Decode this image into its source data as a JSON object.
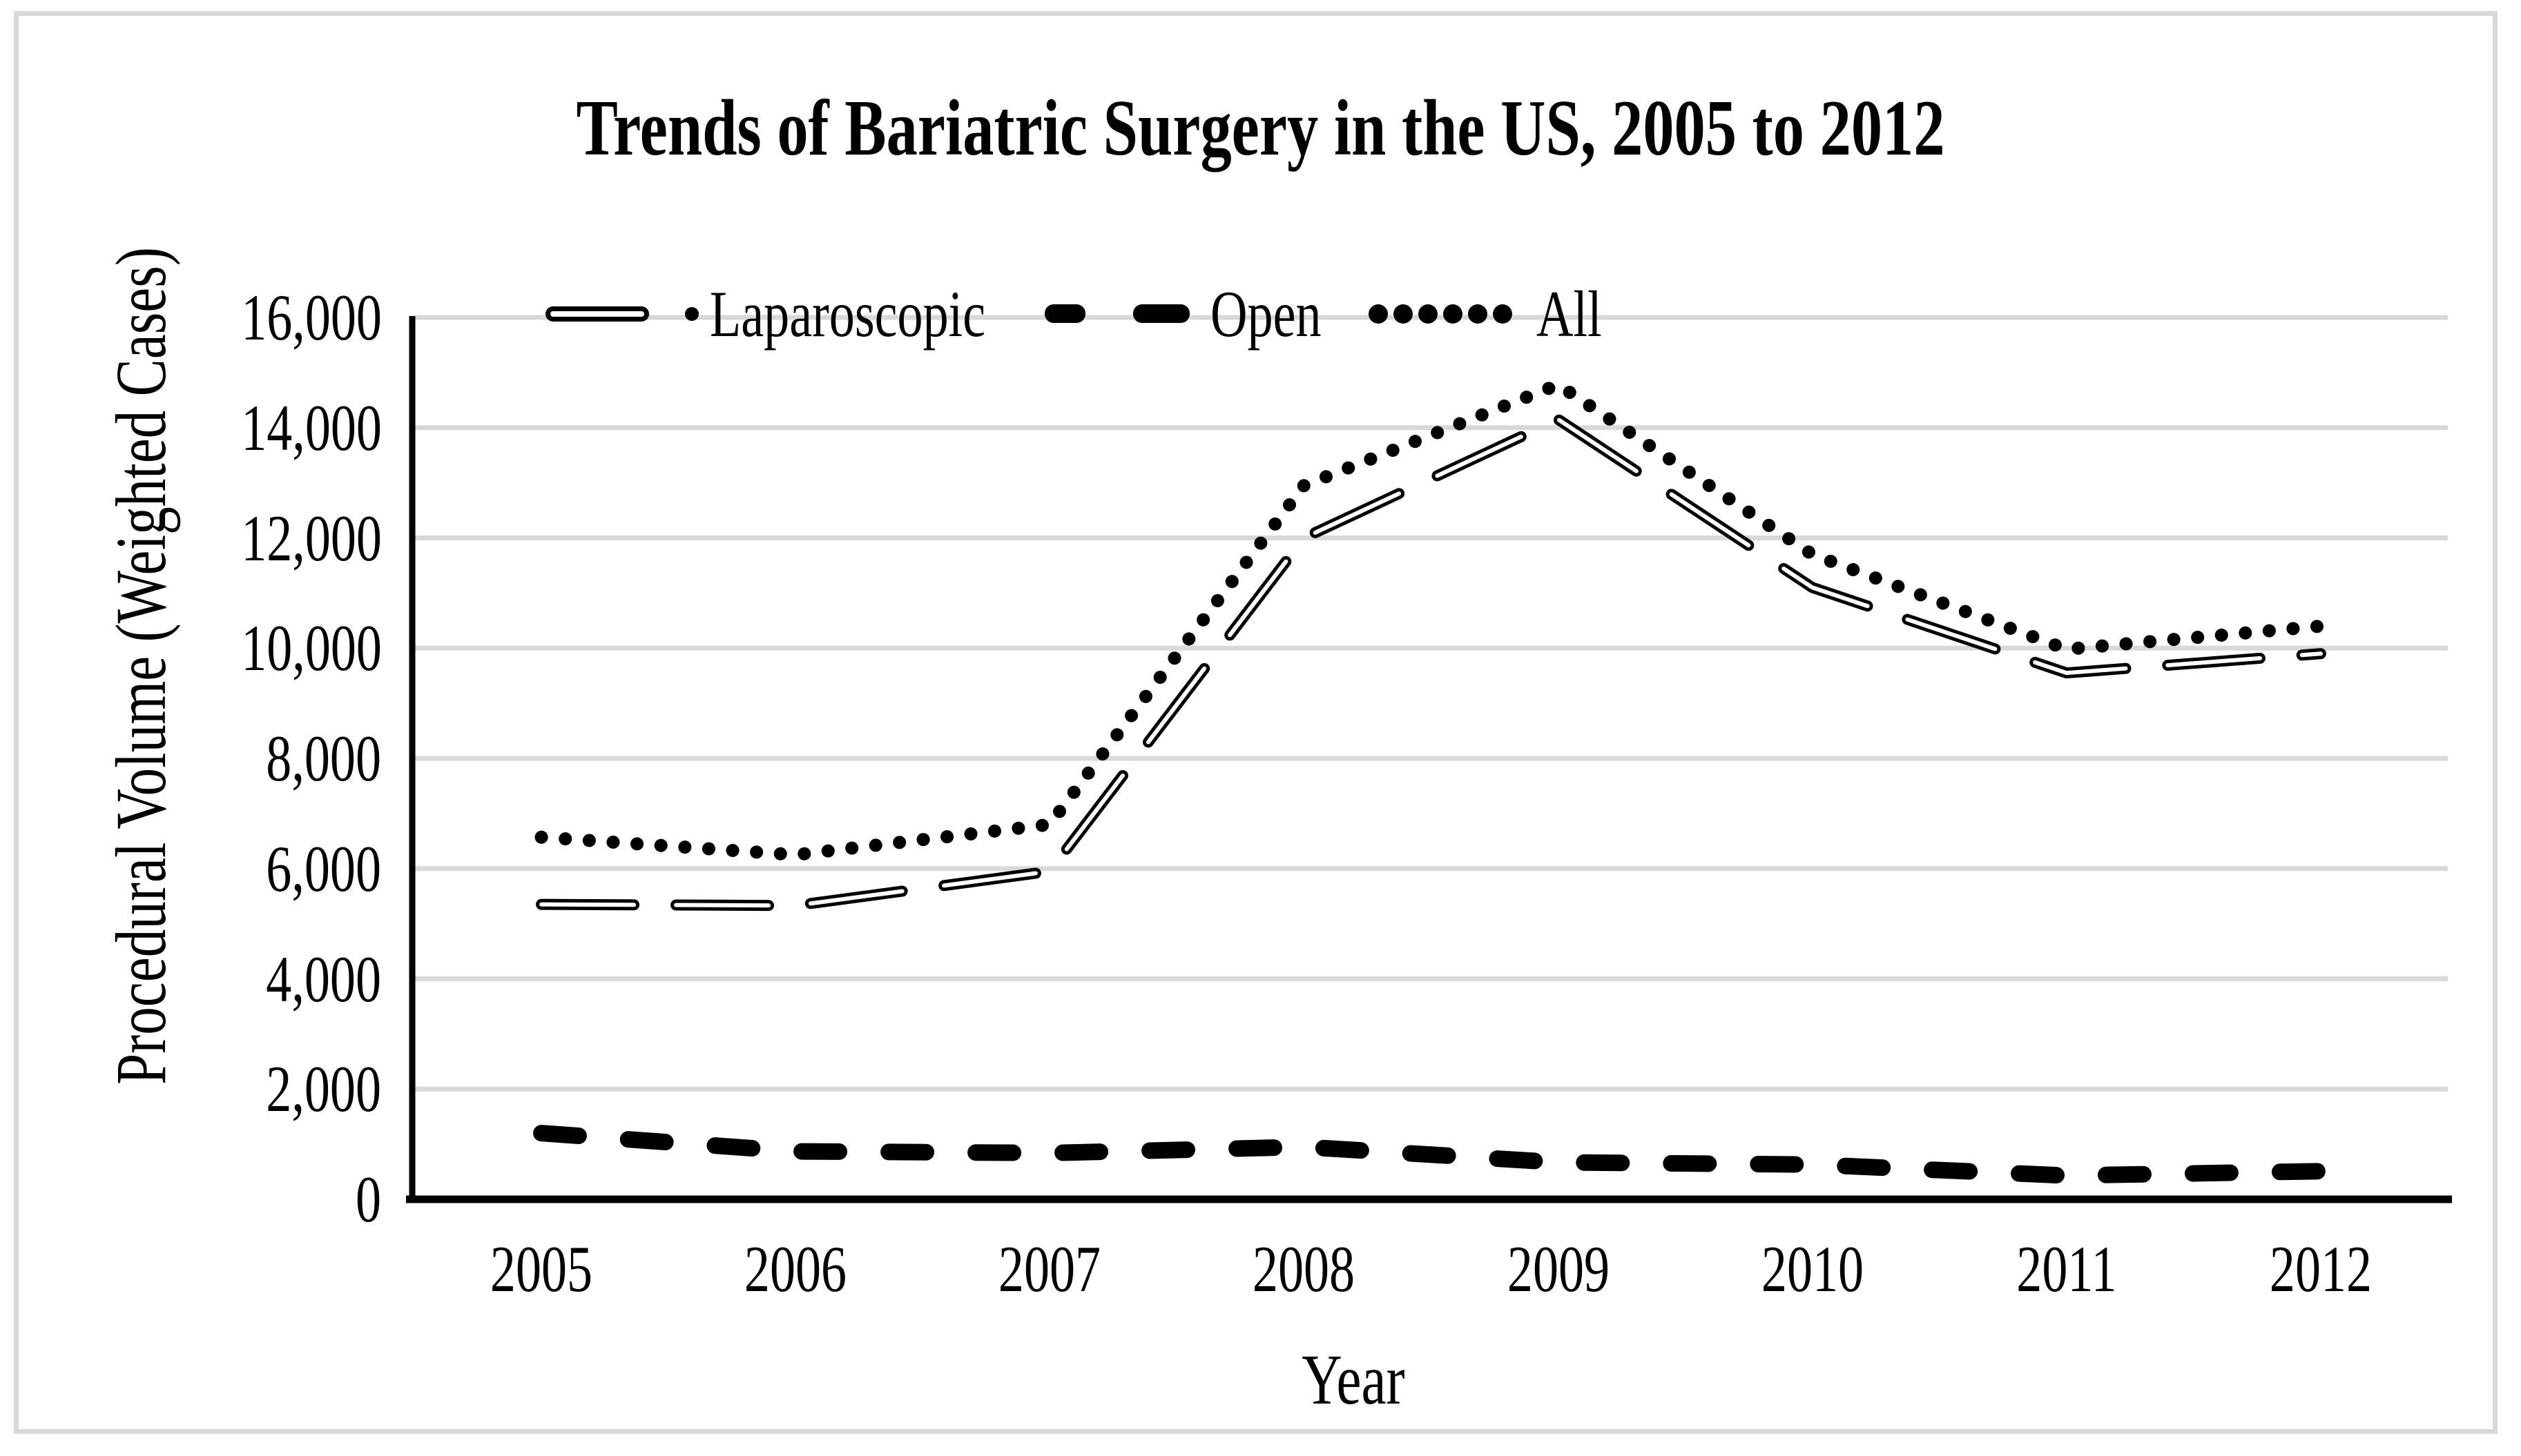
{
  "title": "Trends of Bariatric Surgery in the US, 2005 to 2012",
  "colors": {
    "series_stroke": "#000000",
    "gridline": "#d9d9d9",
    "frame_border": "#d9d9d9",
    "background": "#ffffff"
  },
  "chart_data": {
    "type": "line",
    "title": "Trends of Bariatric Surgery in the US, 2005 to 2012",
    "xlabel": "Year",
    "ylabel": "Procedural Volume (Weighted Cases)",
    "categories": [
      "2005",
      "2006",
      "2007",
      "2008",
      "2009",
      "2010",
      "2011",
      "2012"
    ],
    "series": [
      {
        "name": "Laparoscopic",
        "style": "outlined-white-core-dash",
        "values": [
          5350,
          5330,
          5950,
          12000,
          14150,
          11100,
          9550,
          9900
        ]
      },
      {
        "name": "Open",
        "style": "thick-black-dash",
        "values": [
          1200,
          870,
          840,
          950,
          670,
          630,
          430,
          510
        ]
      },
      {
        "name": "All",
        "style": "round-dotted",
        "values": [
          6570,
          6250,
          6800,
          12950,
          14780,
          11700,
          9980,
          10400
        ]
      }
    ],
    "ylim": [
      0,
      16000
    ],
    "ytick_step": 2000,
    "ytick_labels": [
      "0",
      "2,000",
      "4,000",
      "6,000",
      "8,000",
      "10,000",
      "12,000",
      "14,000",
      "16,000"
    ],
    "grid": true,
    "legend_position": "top"
  },
  "legend": {
    "items": [
      {
        "label": "Laparoscopic",
        "marker": "outlined-capsule-and-dot"
      },
      {
        "label": "Open",
        "marker": "two-black-dashes"
      },
      {
        "label": "All",
        "marker": "six-black-dots"
      }
    ]
  }
}
